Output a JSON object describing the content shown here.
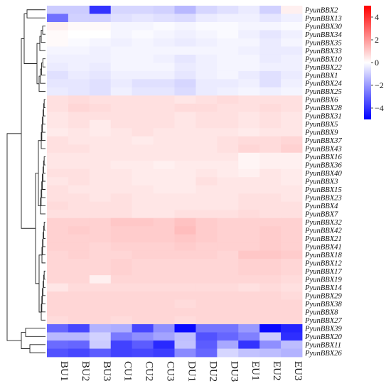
{
  "chart_data": {
    "type": "heatmap",
    "columns": [
      "BU1",
      "BU2",
      "BU3",
      "CU1",
      "CU2",
      "CU3",
      "DU1",
      "DU2",
      "DU3",
      "EU1",
      "EU2",
      "EU3"
    ],
    "rows": [
      "PyunBBX2",
      "PyunBBX13",
      "PyunBBX30",
      "PyunBBX34",
      "PyunBBX35",
      "PyunBBX33",
      "PyunBBX10",
      "PyunBBX22",
      "PyunBBX1",
      "PyunBBX24",
      "PyunBBX25",
      "PyunBBX6",
      "PyunBBX28",
      "PyunBBX31",
      "PyunBBX5",
      "PyunBBX9",
      "PyunBBX37",
      "PyunBBX43",
      "PyunBBX16",
      "PyunBBX36",
      "PyunBBX40",
      "PyunBBX3",
      "PyunBBX15",
      "PyunBBX23",
      "PyunBBX4",
      "PyunBBX7",
      "PyunBBX32",
      "PyunBBX42",
      "PyunBBX21",
      "PyunBBX41",
      "PyunBBX18",
      "PyunBBX12",
      "PyunBBX17",
      "PyunBBX19",
      "PyunBBX14",
      "PyunBBX29",
      "PyunBBX38",
      "PyunBBX8",
      "PyunBBX27",
      "PyunBBX39",
      "PyunBBX20",
      "PyunBBX11",
      "PyunBBX26"
    ],
    "values": [
      [
        -1.0,
        -1.0,
        -4.0,
        -0.8,
        -0.8,
        -0.9,
        -1.4,
        -0.8,
        -0.6,
        -0.4,
        -0.9,
        0.3
      ],
      [
        -2.8,
        -0.9,
        -0.9,
        -0.6,
        -0.5,
        -0.6,
        -0.7,
        -0.4,
        -0.3,
        -0.3,
        -0.5,
        -0.3
      ],
      [
        0.3,
        0.1,
        0.1,
        -0.2,
        -0.2,
        -0.1,
        -0.2,
        -0.1,
        -0.1,
        -0.2,
        -0.2,
        -0.1
      ],
      [
        0.1,
        0.0,
        0.0,
        -0.2,
        -0.1,
        -0.2,
        -0.3,
        -0.2,
        -0.1,
        -0.3,
        -0.5,
        -0.3
      ],
      [
        0.1,
        -0.1,
        -0.2,
        -0.3,
        -0.2,
        -0.3,
        -0.4,
        -0.3,
        -0.2,
        -0.2,
        -0.4,
        -0.2
      ],
      [
        -0.2,
        -0.2,
        -0.3,
        -0.2,
        -0.2,
        -0.2,
        -0.2,
        -0.2,
        -0.2,
        -0.3,
        -0.4,
        -0.4
      ],
      [
        -0.3,
        -0.3,
        -0.3,
        -0.2,
        -0.2,
        -0.3,
        -0.5,
        -0.3,
        -0.2,
        -0.2,
        -0.4,
        -0.3
      ],
      [
        -0.4,
        -0.3,
        -0.4,
        -0.2,
        -0.2,
        -0.2,
        -0.4,
        -0.3,
        -0.2,
        -0.2,
        -0.3,
        -0.3
      ],
      [
        -0.6,
        -0.4,
        -0.5,
        -0.3,
        -0.3,
        -0.3,
        -0.5,
        -0.3,
        -0.2,
        -0.4,
        -0.6,
        -0.4
      ],
      [
        -0.5,
        -0.5,
        -0.6,
        -0.4,
        -0.6,
        -0.6,
        -0.8,
        -0.4,
        -0.4,
        -0.3,
        -0.6,
        -0.3
      ],
      [
        -0.4,
        -0.5,
        -0.6,
        -0.3,
        -0.5,
        -0.5,
        -0.7,
        -0.4,
        -0.3,
        -0.2,
        -0.3,
        -0.2
      ],
      [
        0.6,
        0.7,
        0.6,
        0.6,
        0.6,
        0.6,
        0.5,
        0.6,
        0.7,
        0.6,
        0.6,
        0.6
      ],
      [
        0.6,
        0.8,
        0.7,
        0.6,
        0.6,
        0.6,
        0.7,
        0.7,
        0.6,
        0.6,
        0.7,
        0.6
      ],
      [
        0.5,
        0.6,
        0.6,
        0.6,
        0.6,
        0.6,
        0.5,
        0.6,
        0.6,
        0.5,
        0.6,
        0.5
      ],
      [
        0.5,
        0.6,
        0.4,
        0.6,
        0.6,
        0.6,
        0.5,
        0.6,
        0.6,
        0.5,
        0.6,
        0.5
      ],
      [
        0.4,
        0.5,
        0.4,
        0.5,
        0.6,
        0.5,
        0.5,
        0.5,
        0.5,
        0.4,
        0.5,
        0.5
      ],
      [
        0.6,
        0.5,
        0.5,
        0.5,
        0.4,
        0.5,
        0.5,
        0.5,
        0.6,
        0.7,
        0.7,
        0.8
      ],
      [
        0.6,
        0.6,
        0.5,
        0.5,
        0.5,
        0.5,
        0.5,
        0.5,
        0.6,
        0.8,
        0.7,
        0.9
      ],
      [
        0.5,
        0.5,
        0.5,
        0.5,
        0.5,
        0.5,
        0.5,
        0.5,
        0.5,
        0.2,
        0.3,
        0.3
      ],
      [
        0.5,
        0.5,
        0.5,
        0.4,
        0.4,
        0.3,
        0.4,
        0.4,
        0.4,
        0.2,
        0.3,
        0.3
      ],
      [
        0.6,
        0.6,
        0.5,
        0.5,
        0.4,
        0.4,
        0.4,
        0.5,
        0.4,
        0.3,
        0.5,
        0.4
      ],
      [
        0.5,
        0.6,
        0.5,
        0.5,
        0.4,
        0.4,
        0.4,
        0.6,
        0.5,
        0.5,
        0.5,
        0.4
      ],
      [
        0.6,
        0.5,
        0.5,
        0.5,
        0.5,
        0.4,
        0.4,
        0.5,
        0.5,
        0.5,
        0.5,
        0.5
      ],
      [
        0.6,
        0.6,
        0.5,
        0.6,
        0.5,
        0.5,
        0.5,
        0.5,
        0.5,
        0.6,
        0.6,
        0.5
      ],
      [
        0.7,
        0.6,
        0.6,
        0.6,
        0.5,
        0.5,
        0.5,
        0.5,
        0.5,
        0.6,
        0.6,
        0.6
      ],
      [
        0.6,
        0.6,
        0.6,
        0.6,
        0.5,
        0.5,
        0.6,
        0.6,
        0.6,
        0.7,
        0.6,
        0.6
      ],
      [
        0.9,
        0.9,
        0.9,
        1.1,
        1.1,
        1.0,
        1.2,
        1.0,
        0.9,
        0.9,
        0.9,
        0.9
      ],
      [
        0.9,
        1.0,
        0.9,
        1.0,
        1.0,
        1.0,
        1.3,
        1.0,
        0.9,
        0.9,
        1.0,
        0.9
      ],
      [
        0.9,
        0.9,
        0.9,
        1.0,
        1.0,
        1.0,
        1.1,
        1.0,
        0.9,
        0.9,
        1.0,
        0.9
      ],
      [
        0.9,
        0.9,
        0.8,
        0.9,
        0.9,
        0.9,
        1.0,
        0.9,
        0.9,
        0.9,
        1.0,
        0.9
      ],
      [
        0.8,
        0.9,
        0.8,
        0.8,
        0.9,
        0.9,
        0.9,
        0.9,
        0.8,
        1.1,
        1.1,
        1.0
      ],
      [
        0.8,
        0.8,
        0.8,
        0.9,
        0.8,
        0.8,
        0.8,
        0.8,
        0.8,
        0.9,
        0.9,
        0.8
      ],
      [
        0.8,
        0.8,
        0.8,
        0.9,
        0.8,
        0.8,
        0.8,
        0.8,
        0.8,
        0.9,
        0.9,
        0.8
      ],
      [
        0.8,
        0.8,
        0.3,
        0.8,
        0.8,
        0.8,
        0.8,
        0.8,
        0.8,
        0.8,
        0.8,
        0.7
      ],
      [
        0.5,
        0.7,
        0.7,
        0.7,
        0.7,
        0.7,
        0.7,
        0.7,
        0.7,
        0.6,
        0.7,
        0.6
      ],
      [
        0.8,
        0.8,
        0.8,
        0.8,
        0.8,
        0.8,
        0.8,
        0.8,
        0.8,
        0.8,
        0.8,
        0.7
      ],
      [
        0.8,
        0.8,
        0.8,
        0.8,
        0.8,
        0.8,
        0.7,
        0.8,
        0.8,
        0.8,
        0.8,
        0.8
      ],
      [
        0.8,
        0.8,
        0.8,
        0.8,
        0.8,
        0.8,
        0.8,
        0.8,
        0.8,
        0.8,
        0.8,
        0.8
      ],
      [
        0.7,
        0.8,
        0.8,
        0.7,
        0.8,
        0.8,
        0.7,
        0.8,
        0.8,
        0.8,
        0.8,
        0.8
      ],
      [
        -3.0,
        -3.6,
        -1.5,
        -1.6,
        -3.6,
        -2.2,
        -4.8,
        -2.7,
        -2.7,
        -2.0,
        -4.8,
        -4.3
      ],
      [
        -1.4,
        -1.4,
        -0.9,
        -2.6,
        -2.2,
        -1.8,
        -1.3,
        -3.4,
        -3.0,
        -2.5,
        -1.0,
        -4.1
      ],
      [
        -2.9,
        -3.0,
        -1.0,
        -3.7,
        -3.2,
        -4.2,
        -1.2,
        -3.2,
        -1.7,
        -4.0,
        -2.2,
        -1.3
      ],
      [
        -3.4,
        -3.6,
        -3.2,
        -3.7,
        -3.6,
        -3.8,
        -2.3,
        -3.0,
        -0.8,
        -1.2,
        -1.3,
        -1.5
      ]
    ],
    "color_scale": {
      "min": -5,
      "max": 5,
      "low": "#0000ff",
      "mid": "#ffffff",
      "high": "#ff0000"
    },
    "colorbar_ticks": [
      4,
      2,
      0,
      -2,
      -4
    ],
    "colorbar_tick_labels": [
      "4",
      "2",
      "0",
      "−2",
      "−4"
    ],
    "dendrogram": "row",
    "title": "",
    "xlabel": "",
    "ylabel": ""
  }
}
